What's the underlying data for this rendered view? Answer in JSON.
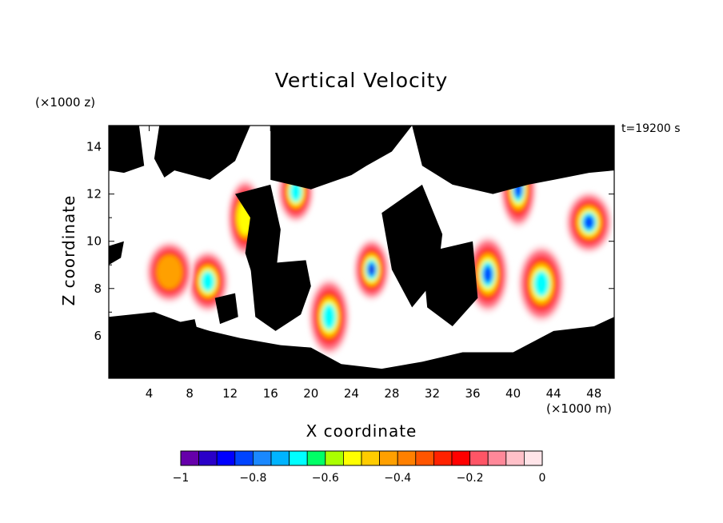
{
  "chart_data": {
    "type": "heatmap",
    "title": "Vertical Velocity",
    "xlabel": "X coordinate",
    "ylabel": "Z coordinate",
    "x_unit": "(×1000 m)",
    "y_unit": "(×1000 z)",
    "time_label": "t=19200 s",
    "xlim": [
      0,
      50
    ],
    "ylim": [
      4.2,
      14.9
    ],
    "x_ticks": [
      "4",
      "8",
      "12",
      "16",
      "20",
      "24",
      "28",
      "32",
      "36",
      "40",
      "44",
      "48"
    ],
    "y_ticks": [
      "6",
      "8",
      "10",
      "12",
      "14"
    ],
    "colorbar": {
      "range": [
        -1,
        0
      ],
      "tick_labels": [
        "−1",
        "−0.8",
        "−0.6",
        "−0.4",
        "−0.2",
        "0"
      ],
      "colors": [
        "#6600aa",
        "#2a00c8",
        "#0000ff",
        "#0044ff",
        "#1a88ff",
        "#00b4ff",
        "#00ffff",
        "#00ff66",
        "#aaff00",
        "#ffff00",
        "#ffcc00",
        "#ffa000",
        "#ff8000",
        "#ff5500",
        "#ff2200",
        "#ff0000",
        "#ff5566",
        "#ff8899",
        "#ffc0c8",
        "#ffe4e8"
      ]
    },
    "masked_color": "#000000",
    "background_color": "#ffffff",
    "features": [
      {
        "x": 26.0,
        "z": 8.8,
        "min_value": -0.95
      },
      {
        "x": 37.5,
        "z": 8.6,
        "min_value": -0.9
      },
      {
        "x": 47.5,
        "z": 10.8,
        "min_value": -0.9
      },
      {
        "x": 40.5,
        "z": 12.2,
        "min_value": -0.85
      },
      {
        "x": 9.8,
        "z": 8.3,
        "min_value": -0.75
      },
      {
        "x": 42.8,
        "z": 8.2,
        "min_value": -0.7
      },
      {
        "x": 18.5,
        "z": 12.1,
        "min_value": -0.8
      },
      {
        "x": 21.8,
        "z": 6.8,
        "min_value": -0.8
      },
      {
        "x": 6.0,
        "z": 8.7,
        "min_value": -0.5
      },
      {
        "x": 13.5,
        "z": 11.0,
        "min_value": -0.6
      }
    ]
  }
}
